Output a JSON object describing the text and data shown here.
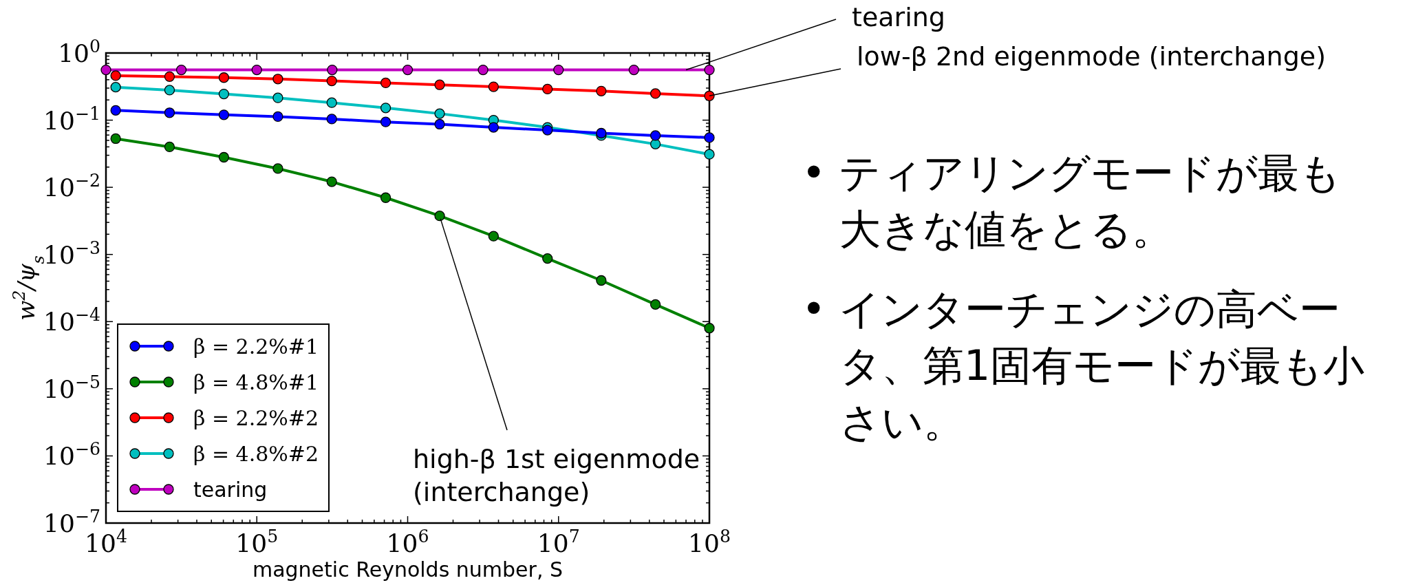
{
  "chart_data": {
    "type": "line",
    "xlabel": "magnetic Reynolds number, S",
    "ylabel": "w$^{2}$/ψ$_{s}$",
    "log": "xy",
    "grid": false,
    "legend": "bottom left",
    "marker": "circle",
    "line_style": "solid",
    "xlim": [
      10000,
      100000000
    ],
    "xticks": [
      {
        "value": 10000,
        "label": "10$^{4}$"
      },
      {
        "value": 100000,
        "label": "10$^{5}$"
      },
      {
        "value": 1000000,
        "label": "10$^{6}$"
      },
      {
        "value": 10000000,
        "label": "10$^{7}$"
      },
      {
        "value": 100000000,
        "label": "10$^{8}$"
      }
    ],
    "ylim": [
      1e-07,
      1
    ],
    "yticks": [
      {
        "value": 1e-07,
        "label": "10$^{−7}$"
      },
      {
        "value": 1e-06,
        "label": "10$^{−6}$"
      },
      {
        "value": 1e-05,
        "label": "10$^{−5}$"
      },
      {
        "value": 0.0001,
        "label": "10$^{−4}$"
      },
      {
        "value": 0.001,
        "label": "10$^{−3}$"
      },
      {
        "value": 0.01,
        "label": "10$^{−2}$"
      },
      {
        "value": 0.1,
        "label": "10$^{−1}$"
      },
      {
        "value": 1,
        "label": "10$^{0}$"
      }
    ],
    "series": [
      {
        "name": "β = 2.2%#1",
        "color": "#0000ff",
        "x": [
          11600,
          26400,
          60500,
          138000,
          314000,
          715000,
          1630000,
          3710000,
          8450000,
          19200000,
          43900000,
          100000000
        ],
        "values": [
          0.14,
          0.129,
          0.12,
          0.113,
          0.104,
          0.094,
          0.087,
          0.078,
          0.071,
          0.064,
          0.059,
          0.055
        ]
      },
      {
        "name": "β = 4.8%#1",
        "color": "#008000",
        "x": [
          11600,
          26400,
          60500,
          138000,
          314000,
          715000,
          1630000,
          3710000,
          8450000,
          19200000,
          43900000,
          100000000
        ],
        "values": [
          0.053,
          0.04,
          0.028,
          0.019,
          0.0121,
          0.007,
          0.00375,
          0.00187,
          0.00087,
          0.00041,
          0.00018,
          8e-05
        ]
      },
      {
        "name": "β = 2.2%#2",
        "color": "#ff0000",
        "x": [
          11600,
          26400,
          60500,
          138000,
          314000,
          715000,
          1630000,
          3710000,
          8450000,
          19200000,
          43900000,
          100000000
        ],
        "values": [
          0.46,
          0.445,
          0.43,
          0.41,
          0.384,
          0.359,
          0.336,
          0.314,
          0.29,
          0.271,
          0.249,
          0.23
        ]
      },
      {
        "name": "β = 4.8%#2",
        "color": "#00bfbf",
        "x": [
          11600,
          26400,
          60500,
          138000,
          314000,
          715000,
          1630000,
          3710000,
          8450000,
          19200000,
          43900000,
          100000000
        ],
        "values": [
          0.31,
          0.28,
          0.245,
          0.215,
          0.182,
          0.152,
          0.125,
          0.1,
          0.078,
          0.059,
          0.044,
          0.031
        ]
      },
      {
        "name": "tearing",
        "color": "#bf00bf",
        "x": [
          10000,
          31600,
          100000,
          316000,
          1000000,
          3160000,
          10000000,
          31600000,
          100000000
        ],
        "values": [
          0.56,
          0.56,
          0.56,
          0.56,
          0.56,
          0.56,
          0.56,
          0.56,
          0.56
        ]
      }
    ],
    "annotations": [
      {
        "text": "tearing",
        "x": 70000000,
        "y": 0.56
      },
      {
        "text": "low-β 2nd eigenmode (interchange)",
        "x": 100000000,
        "y": 0.23
      },
      {
        "text": "high-β 1st eigenmode\n(interchange)",
        "x": 1650000,
        "y": 0.0034
      },
      "• ティアリングモードが最も大きな値をとる。",
      "• インターチェンジの高ベータ、第1固有モードが最も小さい。"
    ]
  }
}
